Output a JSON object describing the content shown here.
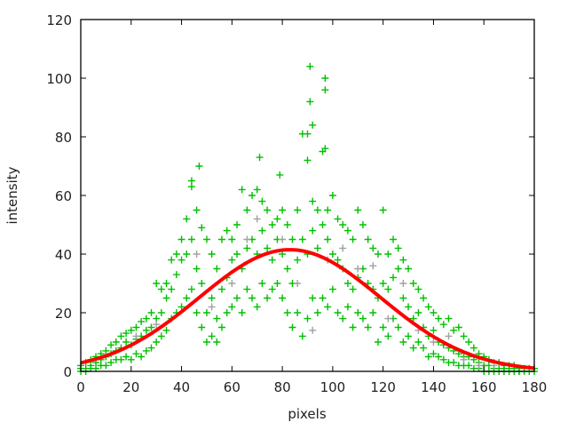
{
  "chart_data": {
    "type": "scatter",
    "title": "",
    "xlabel": "pixels",
    "ylabel": "intensity",
    "xlim": [
      0,
      180
    ],
    "ylim": [
      0,
      120
    ],
    "xticks": [
      0,
      20,
      40,
      60,
      80,
      100,
      120,
      140,
      160,
      180
    ],
    "yticks": [
      0,
      20,
      40,
      60,
      80,
      100,
      120
    ],
    "grid": false,
    "legend": "none",
    "colors": {
      "data": "#00c000",
      "data_alt": "#a0a0a0",
      "fit": "#ff0000",
      "axis": "#000000"
    },
    "series": [
      {
        "marker": "plus",
        "color": "#00c000",
        "points": [
          [
            0,
            0
          ],
          [
            0,
            1
          ],
          [
            0,
            2
          ],
          [
            2,
            0
          ],
          [
            2,
            1
          ],
          [
            2,
            3
          ],
          [
            4,
            1
          ],
          [
            4,
            2
          ],
          [
            4,
            4
          ],
          [
            6,
            1
          ],
          [
            6,
            3
          ],
          [
            6,
            5
          ],
          [
            8,
            2
          ],
          [
            8,
            4
          ],
          [
            8,
            6
          ],
          [
            10,
            2
          ],
          [
            10,
            5
          ],
          [
            10,
            7
          ],
          [
            12,
            3
          ],
          [
            12,
            6
          ],
          [
            12,
            9
          ],
          [
            14,
            4
          ],
          [
            14,
            7
          ],
          [
            14,
            10
          ],
          [
            16,
            4
          ],
          [
            16,
            8
          ],
          [
            16,
            12
          ],
          [
            18,
            5
          ],
          [
            18,
            10
          ],
          [
            18,
            13
          ],
          [
            20,
            4
          ],
          [
            20,
            9
          ],
          [
            20,
            14
          ],
          [
            22,
            6
          ],
          [
            22,
            11
          ],
          [
            22,
            15
          ],
          [
            24,
            5
          ],
          [
            24,
            12
          ],
          [
            24,
            17
          ],
          [
            26,
            7
          ],
          [
            26,
            14
          ],
          [
            26,
            18
          ],
          [
            28,
            8
          ],
          [
            28,
            15
          ],
          [
            28,
            20
          ],
          [
            30,
            10
          ],
          [
            30,
            18
          ],
          [
            30,
            30
          ],
          [
            32,
            12
          ],
          [
            32,
            20
          ],
          [
            32,
            28
          ],
          [
            34,
            14
          ],
          [
            34,
            25
          ],
          [
            34,
            30
          ],
          [
            36,
            18
          ],
          [
            36,
            28
          ],
          [
            36,
            38
          ],
          [
            38,
            20
          ],
          [
            38,
            33
          ],
          [
            38,
            40
          ],
          [
            40,
            22
          ],
          [
            40,
            38
          ],
          [
            40,
            45
          ],
          [
            42,
            25
          ],
          [
            42,
            40
          ],
          [
            42,
            52
          ],
          [
            44,
            28
          ],
          [
            44,
            45
          ],
          [
            44,
            63
          ],
          [
            46,
            20
          ],
          [
            46,
            35
          ],
          [
            46,
            55
          ],
          [
            48,
            15
          ],
          [
            48,
            30
          ],
          [
            48,
            49
          ],
          [
            50,
            10
          ],
          [
            50,
            20
          ],
          [
            50,
            45
          ],
          [
            52,
            12
          ],
          [
            52,
            25
          ],
          [
            52,
            40
          ],
          [
            54,
            10
          ],
          [
            54,
            18
          ],
          [
            54,
            35
          ],
          [
            56,
            15
          ],
          [
            56,
            28
          ],
          [
            56,
            45
          ],
          [
            58,
            20
          ],
          [
            58,
            32
          ],
          [
            58,
            48
          ],
          [
            60,
            22
          ],
          [
            60,
            38
          ],
          [
            60,
            45
          ],
          [
            62,
            25
          ],
          [
            62,
            40
          ],
          [
            62,
            50
          ],
          [
            64,
            20
          ],
          [
            64,
            35
          ],
          [
            64,
            62
          ],
          [
            66,
            28
          ],
          [
            66,
            42
          ],
          [
            66,
            55
          ],
          [
            68,
            25
          ],
          [
            68,
            45
          ],
          [
            68,
            60
          ],
          [
            70,
            22
          ],
          [
            70,
            40
          ],
          [
            70,
            62
          ],
          [
            72,
            30
          ],
          [
            72,
            48
          ],
          [
            72,
            58
          ],
          [
            74,
            25
          ],
          [
            74,
            42
          ],
          [
            74,
            55
          ],
          [
            76,
            28
          ],
          [
            76,
            38
          ],
          [
            76,
            50
          ],
          [
            78,
            30
          ],
          [
            78,
            45
          ],
          [
            78,
            52
          ],
          [
            80,
            25
          ],
          [
            80,
            40
          ],
          [
            80,
            55
          ],
          [
            82,
            20
          ],
          [
            82,
            35
          ],
          [
            82,
            50
          ],
          [
            84,
            15
          ],
          [
            84,
            30
          ],
          [
            84,
            45
          ],
          [
            86,
            20
          ],
          [
            86,
            38
          ],
          [
            86,
            55
          ],
          [
            88,
            12
          ],
          [
            88,
            45
          ],
          [
            88,
            81
          ],
          [
            90,
            18
          ],
          [
            90,
            40
          ],
          [
            90,
            72
          ],
          [
            92,
            25
          ],
          [
            92,
            48
          ],
          [
            92,
            58
          ],
          [
            94,
            20
          ],
          [
            94,
            42
          ],
          [
            94,
            55
          ],
          [
            96,
            25
          ],
          [
            96,
            50
          ],
          [
            96,
            75
          ],
          [
            98,
            22
          ],
          [
            98,
            45
          ],
          [
            98,
            55
          ],
          [
            100,
            28
          ],
          [
            100,
            40
          ],
          [
            100,
            60
          ],
          [
            102,
            20
          ],
          [
            102,
            38
          ],
          [
            102,
            52
          ],
          [
            104,
            18
          ],
          [
            104,
            35
          ],
          [
            104,
            50
          ],
          [
            106,
            22
          ],
          [
            106,
            30
          ],
          [
            106,
            48
          ],
          [
            108,
            15
          ],
          [
            108,
            28
          ],
          [
            108,
            45
          ],
          [
            110,
            20
          ],
          [
            110,
            32
          ],
          [
            110,
            55
          ],
          [
            112,
            18
          ],
          [
            112,
            35
          ],
          [
            112,
            50
          ],
          [
            114,
            15
          ],
          [
            114,
            30
          ],
          [
            114,
            45
          ],
          [
            116,
            20
          ],
          [
            116,
            28
          ],
          [
            116,
            42
          ],
          [
            118,
            10
          ],
          [
            118,
            25
          ],
          [
            118,
            40
          ],
          [
            120,
            15
          ],
          [
            120,
            30
          ],
          [
            120,
            55
          ],
          [
            122,
            12
          ],
          [
            122,
            28
          ],
          [
            122,
            40
          ],
          [
            124,
            18
          ],
          [
            124,
            32
          ],
          [
            124,
            45
          ],
          [
            126,
            15
          ],
          [
            126,
            35
          ],
          [
            126,
            42
          ],
          [
            128,
            10
          ],
          [
            128,
            25
          ],
          [
            128,
            38
          ],
          [
            130,
            12
          ],
          [
            130,
            22
          ],
          [
            130,
            35
          ],
          [
            132,
            8
          ],
          [
            132,
            18
          ],
          [
            132,
            30
          ],
          [
            134,
            10
          ],
          [
            134,
            20
          ],
          [
            134,
            28
          ],
          [
            136,
            8
          ],
          [
            136,
            15
          ],
          [
            136,
            25
          ],
          [
            138,
            5
          ],
          [
            138,
            12
          ],
          [
            138,
            22
          ],
          [
            140,
            6
          ],
          [
            140,
            14
          ],
          [
            140,
            20
          ],
          [
            142,
            5
          ],
          [
            142,
            10
          ],
          [
            142,
            18
          ],
          [
            144,
            4
          ],
          [
            144,
            9
          ],
          [
            144,
            16
          ],
          [
            146,
            3
          ],
          [
            146,
            8
          ],
          [
            146,
            18
          ],
          [
            148,
            3
          ],
          [
            148,
            7
          ],
          [
            148,
            14
          ],
          [
            150,
            2
          ],
          [
            150,
            6
          ],
          [
            150,
            15
          ],
          [
            152,
            2
          ],
          [
            152,
            5
          ],
          [
            152,
            12
          ],
          [
            154,
            2
          ],
          [
            154,
            5
          ],
          [
            154,
            10
          ],
          [
            156,
            1
          ],
          [
            156,
            4
          ],
          [
            156,
            8
          ],
          [
            158,
            1
          ],
          [
            158,
            3
          ],
          [
            158,
            6
          ],
          [
            160,
            0
          ],
          [
            160,
            2
          ],
          [
            160,
            5
          ],
          [
            162,
            0
          ],
          [
            162,
            2
          ],
          [
            162,
            4
          ],
          [
            164,
            0
          ],
          [
            164,
            1
          ],
          [
            164,
            3
          ],
          [
            166,
            0
          ],
          [
            166,
            1
          ],
          [
            166,
            3
          ],
          [
            168,
            0
          ],
          [
            168,
            1
          ],
          [
            168,
            2
          ],
          [
            170,
            0
          ],
          [
            170,
            1
          ],
          [
            170,
            2
          ],
          [
            172,
            0
          ],
          [
            172,
            1
          ],
          [
            172,
            2
          ],
          [
            174,
            0
          ],
          [
            174,
            0
          ],
          [
            174,
            1
          ],
          [
            176,
            0
          ],
          [
            176,
            1
          ],
          [
            178,
            0
          ],
          [
            178,
            1
          ],
          [
            180,
            0
          ],
          [
            180,
            1
          ],
          [
            91,
            104
          ],
          [
            97,
            100
          ],
          [
            97,
            96
          ],
          [
            91,
            92
          ],
          [
            92,
            84
          ],
          [
            90,
            81
          ],
          [
            47,
            70
          ],
          [
            71,
            73
          ],
          [
            44,
            65
          ],
          [
            97,
            76
          ],
          [
            79,
            67
          ]
        ]
      },
      {
        "marker": "plus",
        "color": "#a0a0a0",
        "points": [
          [
            22,
            12
          ],
          [
            30,
            16
          ],
          [
            46,
            40
          ],
          [
            52,
            22
          ],
          [
            60,
            30
          ],
          [
            66,
            45
          ],
          [
            70,
            52
          ],
          [
            80,
            45
          ],
          [
            86,
            30
          ],
          [
            92,
            14
          ],
          [
            98,
            38
          ],
          [
            104,
            42
          ],
          [
            110,
            35
          ],
          [
            116,
            36
          ],
          [
            122,
            18
          ],
          [
            128,
            30
          ],
          [
            134,
            14
          ],
          [
            140,
            10
          ],
          [
            146,
            12
          ],
          [
            152,
            4
          ],
          [
            158,
            2
          ],
          [
            164,
            2
          ]
        ]
      }
    ],
    "fit": {
      "model": "gaussian",
      "color": "#ff0000",
      "amplitude": 41.5,
      "center": 83,
      "sigma": 36
    }
  }
}
